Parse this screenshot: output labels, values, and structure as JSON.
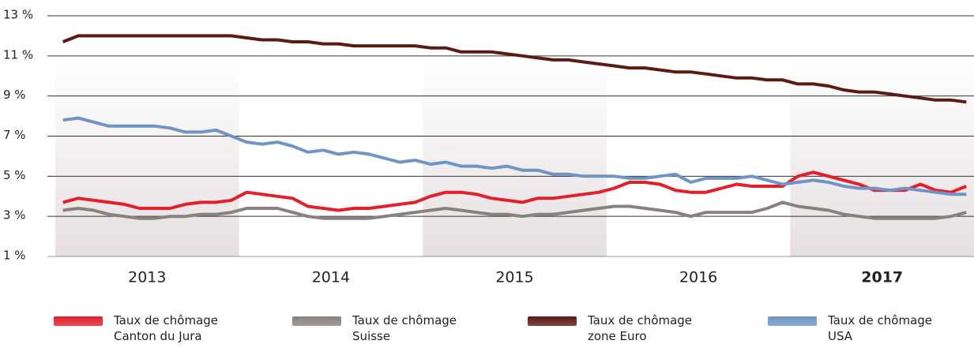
{
  "chart_data": {
    "type": "line",
    "categories": [
      null,
      null,
      null,
      null,
      null,
      null,
      "2013",
      null,
      null,
      null,
      null,
      null,
      null,
      null,
      null,
      null,
      null,
      null,
      "2014",
      null,
      null,
      null,
      null,
      null,
      null,
      null,
      null,
      null,
      null,
      null,
      "2015",
      null,
      null,
      null,
      null,
      null,
      null,
      null,
      null,
      null,
      null,
      null,
      "2016",
      null,
      null,
      null,
      null,
      null,
      null,
      null,
      null,
      null,
      null,
      null,
      "2017",
      null,
      null,
      null,
      null,
      null
    ],
    "series": [
      {
        "name": "Taux de chômage\nCanton du Jura",
        "color": "#e3202a",
        "values": [
          3.7,
          3.9,
          3.8,
          3.7,
          3.6,
          3.4,
          3.4,
          3.4,
          3.6,
          3.7,
          3.7,
          3.8,
          4.2,
          4.1,
          4.0,
          3.9,
          3.5,
          3.4,
          3.3,
          3.4,
          3.4,
          3.5,
          3.6,
          3.7,
          4.0,
          4.2,
          4.2,
          4.1,
          3.9,
          3.8,
          3.7,
          3.9,
          3.9,
          4.0,
          4.1,
          4.2,
          4.4,
          4.7,
          4.7,
          4.6,
          4.3,
          4.2,
          4.2,
          4.4,
          4.6,
          4.5,
          4.5,
          4.5,
          5.0,
          5.2,
          5.0,
          4.8,
          4.6,
          4.3,
          4.3,
          4.3,
          4.6,
          4.3,
          4.2,
          4.5
        ]
      },
      {
        "name": "Taux de chômage\nSuisse",
        "color": "#8a817e",
        "values": [
          3.3,
          3.4,
          3.3,
          3.1,
          3.0,
          2.9,
          2.9,
          3.0,
          3.0,
          3.1,
          3.1,
          3.2,
          3.4,
          3.4,
          3.4,
          3.2,
          3.0,
          2.9,
          2.9,
          2.9,
          2.9,
          3.0,
          3.1,
          3.2,
          3.3,
          3.4,
          3.3,
          3.2,
          3.1,
          3.1,
          3.0,
          3.1,
          3.1,
          3.2,
          3.3,
          3.4,
          3.5,
          3.5,
          3.4,
          3.3,
          3.2,
          3.0,
          3.2,
          3.2,
          3.2,
          3.2,
          3.4,
          3.7,
          3.5,
          3.4,
          3.3,
          3.1,
          3.0,
          2.9,
          2.9,
          2.9,
          2.9,
          2.9,
          3.0,
          3.2
        ]
      },
      {
        "name": "Taux de chômage\nzone Euro",
        "color": "#5c1a14",
        "values": [
          11.7,
          12.0,
          12.0,
          12.0,
          12.0,
          12.0,
          12.0,
          12.0,
          12.0,
          12.0,
          12.0,
          12.0,
          11.9,
          11.8,
          11.8,
          11.7,
          11.7,
          11.6,
          11.6,
          11.5,
          11.5,
          11.5,
          11.5,
          11.5,
          11.4,
          11.4,
          11.2,
          11.2,
          11.2,
          11.1,
          11.0,
          10.9,
          10.8,
          10.8,
          10.7,
          10.6,
          10.5,
          10.4,
          10.4,
          10.3,
          10.2,
          10.2,
          10.1,
          10.0,
          9.9,
          9.9,
          9.8,
          9.8,
          9.6,
          9.6,
          9.5,
          9.3,
          9.2,
          9.2,
          9.1,
          9.0,
          8.9,
          8.8,
          8.8,
          8.7
        ]
      },
      {
        "name": "Taux de chômage\nUSA",
        "color": "#6f95c6",
        "values": [
          7.8,
          7.9,
          7.7,
          7.5,
          7.5,
          7.5,
          7.5,
          7.4,
          7.2,
          7.2,
          7.3,
          7.0,
          6.7,
          6.6,
          6.7,
          6.5,
          6.2,
          6.3,
          6.1,
          6.2,
          6.1,
          5.9,
          5.7,
          5.8,
          5.6,
          5.7,
          5.5,
          5.5,
          5.4,
          5.5,
          5.3,
          5.3,
          5.1,
          5.1,
          5.0,
          5.0,
          5.0,
          4.9,
          4.9,
          5.0,
          5.1,
          4.7,
          4.9,
          4.9,
          4.9,
          5.0,
          4.8,
          4.6,
          4.7,
          4.8,
          4.7,
          4.5,
          4.4,
          4.4,
          4.3,
          4.4,
          4.3,
          4.2,
          4.1,
          4.1
        ]
      }
    ],
    "ylim": [
      1,
      13
    ],
    "yticks": [
      {
        "value": 1,
        "label": "1 %"
      },
      {
        "value": 3,
        "label": "3 %"
      },
      {
        "value": 5,
        "label": "5 %"
      },
      {
        "value": 7,
        "label": "7 %"
      },
      {
        "value": 9,
        "label": "9 %"
      },
      {
        "value": 11,
        "label": "11 %"
      },
      {
        "value": 13,
        "label": "13 %"
      }
    ],
    "grid": true
  }
}
